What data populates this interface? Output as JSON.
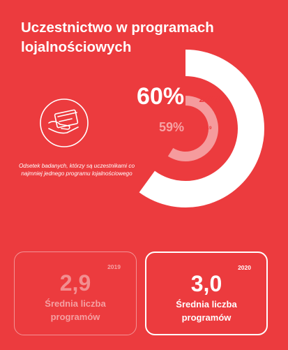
{
  "title": {
    "line1": "Uczestnictwo w programach",
    "line2": "lojalnościowych"
  },
  "caption": {
    "line1": "Odsetek badanych, którzy są uczestnikami co",
    "line2": "najmniej jednego programu lojalnościowego"
  },
  "icon": "hand-holding-card-icon",
  "colors": {
    "background": "#EC3B3E",
    "ring_2020": "#FFFFFF",
    "ring_2019": "#F59B9D"
  },
  "chart_data": {
    "type": "radial-bar",
    "series": [
      {
        "name": "2020",
        "value": 60,
        "label": "60%",
        "color": "#FFFFFF"
      },
      {
        "name": "2019",
        "value": 59,
        "label": "59%",
        "color": "#F59B9D"
      }
    ]
  },
  "stats": [
    {
      "year": "2019",
      "value": "2,9",
      "label_line1": "Średnia liczba",
      "label_line2": "programów"
    },
    {
      "year": "2020",
      "value": "3,0",
      "label_line1": "Średnia liczba",
      "label_line2": "programów"
    }
  ]
}
